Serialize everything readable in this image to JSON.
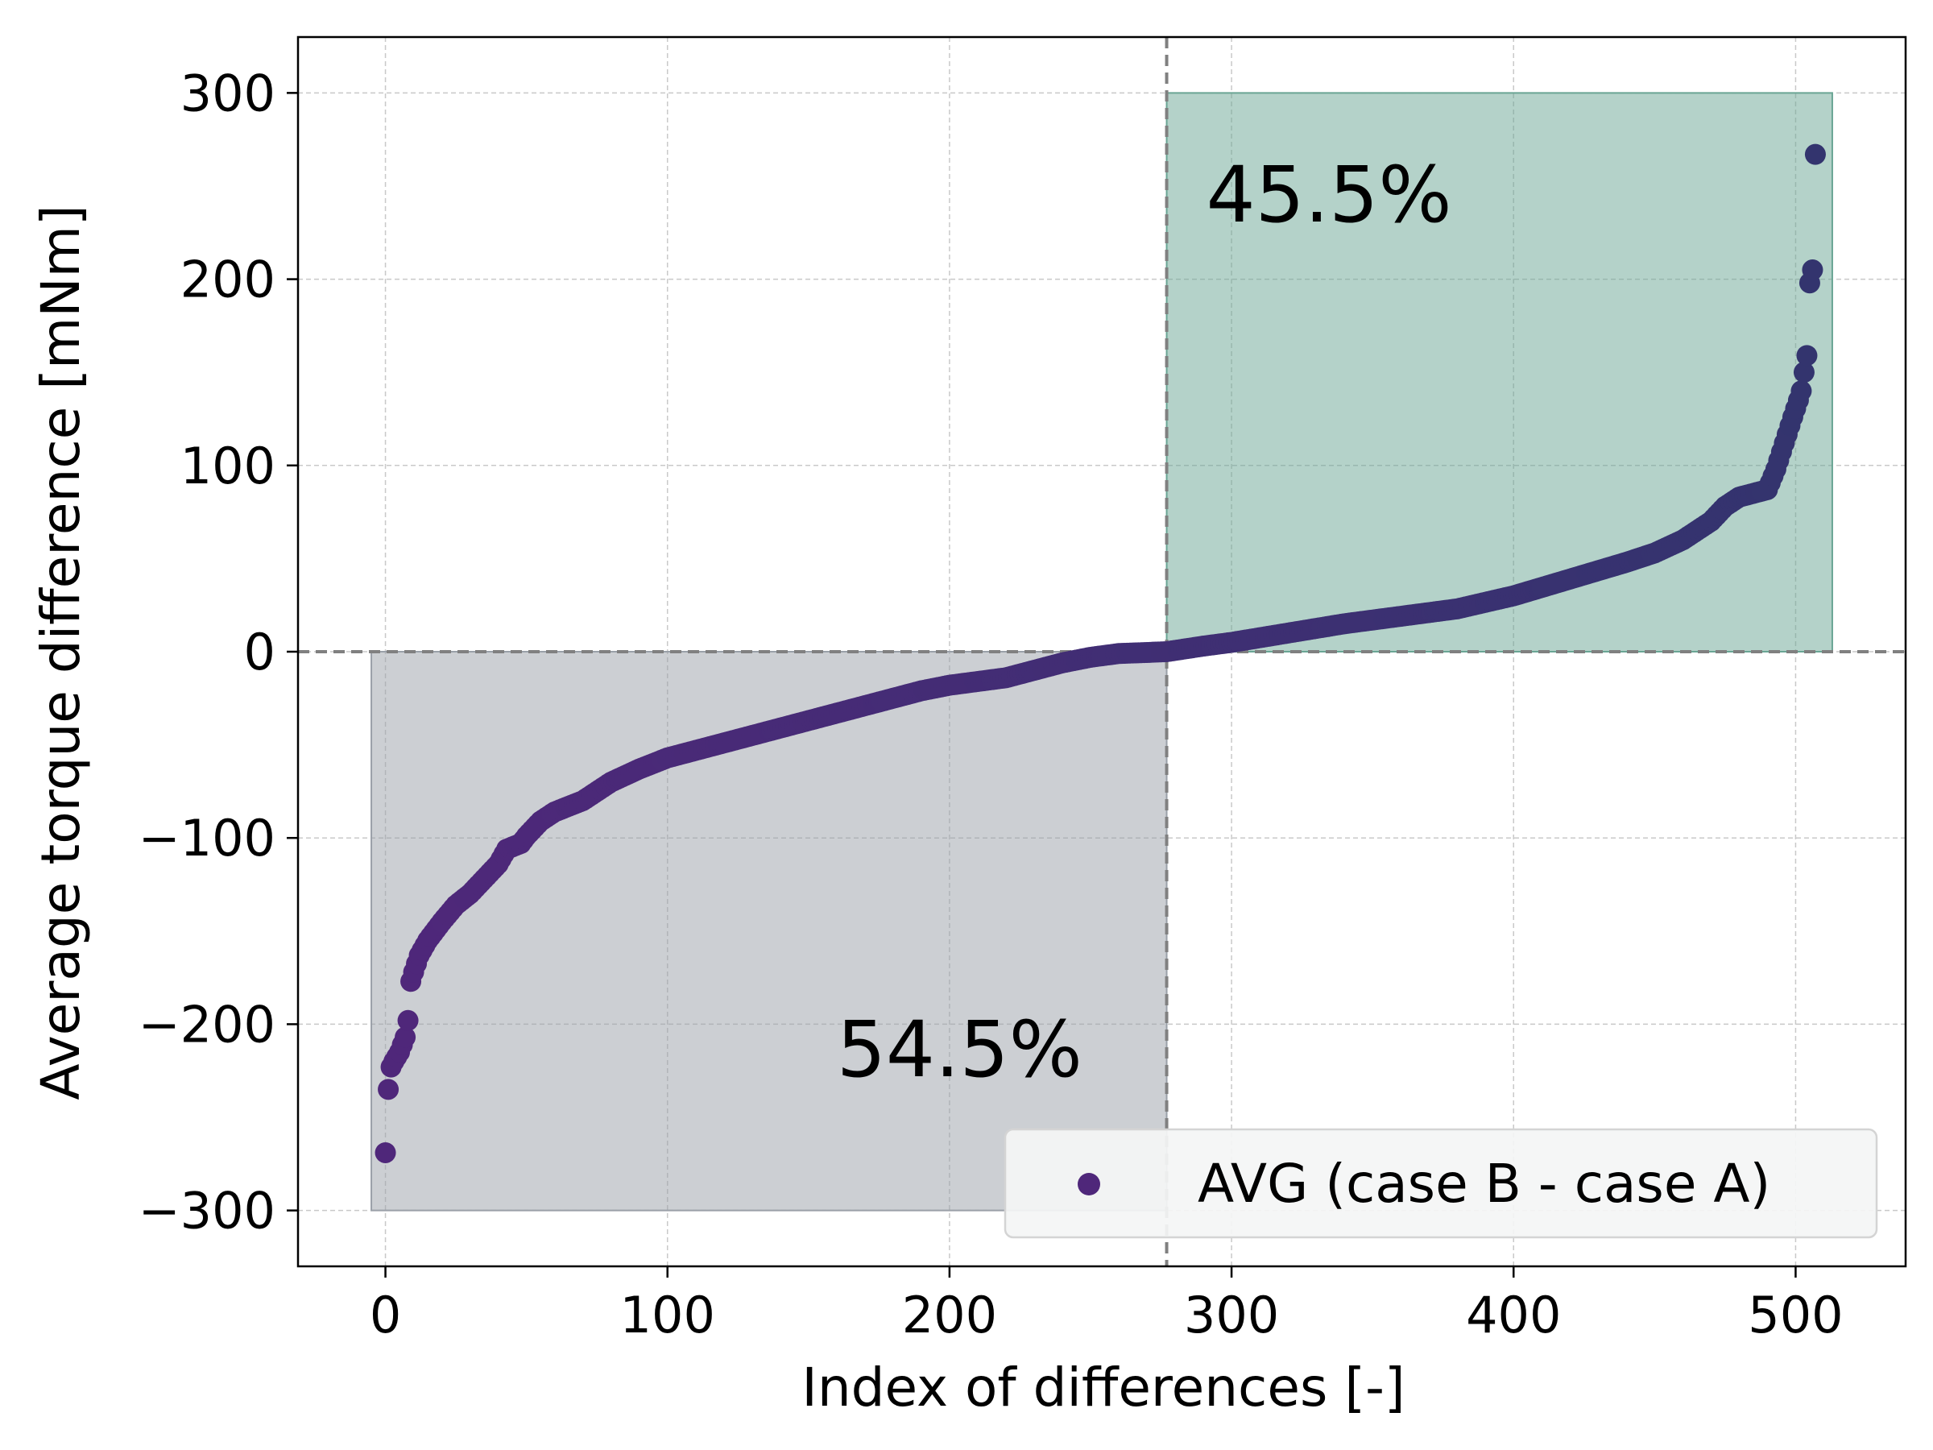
{
  "chart_data": {
    "type": "scatter",
    "title": "",
    "xlabel": "Index of differences [-]",
    "ylabel": "Average torque difference [mNm]",
    "xlim": [
      -31,
      539
    ],
    "ylim": [
      -330,
      330
    ],
    "xticks": [
      0,
      100,
      200,
      300,
      400,
      500
    ],
    "yticks": [
      -300,
      -200,
      -100,
      0,
      100,
      200,
      300
    ],
    "xtick_labels": [
      "0",
      "100",
      "200",
      "300",
      "400",
      "500"
    ],
    "ytick_labels": [
      "−300",
      "−200",
      "−100",
      "0",
      "100",
      "200",
      "300"
    ],
    "grid": true,
    "legend": {
      "placement": "lower-right",
      "entries": [
        "AVG (case B - case A)"
      ]
    },
    "reference_lines": {
      "horizontal_y": 0,
      "vertical_x": 277
    },
    "regions": [
      {
        "name": "negative-region",
        "x": [
          -5,
          277
        ],
        "y": [
          -300,
          0
        ],
        "color": "#9aa0a8",
        "label": "54.5%"
      },
      {
        "name": "positive-region",
        "x": [
          277,
          513
        ],
        "y": [
          0,
          300
        ],
        "color": "#6aa594",
        "label": "45.5%"
      }
    ],
    "annotations": [
      {
        "text": "54.5%",
        "x": 160,
        "y": -228
      },
      {
        "text": "45.5%",
        "x": 291,
        "y": 231
      }
    ],
    "series": [
      {
        "name": "AVG (case B - case A)",
        "color_start": "#4f277a",
        "color_end": "#33346e",
        "n_points": 508,
        "profile": [
          [
            0,
            -269
          ],
          [
            1,
            -235
          ],
          [
            2,
            -223
          ],
          [
            3,
            -220
          ],
          [
            5,
            -215
          ],
          [
            7,
            -207
          ],
          [
            8,
            -198
          ],
          [
            9,
            -177
          ],
          [
            10,
            -172
          ],
          [
            12,
            -163
          ],
          [
            15,
            -155
          ],
          [
            20,
            -145
          ],
          [
            25,
            -136
          ],
          [
            30,
            -130
          ],
          [
            35,
            -122
          ],
          [
            40,
            -114
          ],
          [
            43,
            -106
          ],
          [
            48,
            -103
          ],
          [
            50,
            -99
          ],
          [
            55,
            -91
          ],
          [
            60,
            -86
          ],
          [
            65,
            -83
          ],
          [
            70,
            -80
          ],
          [
            75,
            -75
          ],
          [
            80,
            -70
          ],
          [
            90,
            -63
          ],
          [
            100,
            -57
          ],
          [
            110,
            -53
          ],
          [
            120,
            -49
          ],
          [
            130,
            -45
          ],
          [
            140,
            -41
          ],
          [
            150,
            -37
          ],
          [
            160,
            -33
          ],
          [
            170,
            -29
          ],
          [
            180,
            -25
          ],
          [
            190,
            -21
          ],
          [
            200,
            -18
          ],
          [
            210,
            -16
          ],
          [
            220,
            -14
          ],
          [
            230,
            -10
          ],
          [
            240,
            -6
          ],
          [
            250,
            -3
          ],
          [
            260,
            -1
          ],
          [
            277,
            0
          ],
          [
            290,
            3
          ],
          [
            300,
            5
          ],
          [
            320,
            10
          ],
          [
            340,
            15
          ],
          [
            360,
            19
          ],
          [
            380,
            23
          ],
          [
            400,
            30
          ],
          [
            420,
            39
          ],
          [
            440,
            48
          ],
          [
            450,
            53
          ],
          [
            460,
            60
          ],
          [
            470,
            70
          ],
          [
            475,
            78
          ],
          [
            480,
            83
          ],
          [
            485,
            85
          ],
          [
            490,
            87
          ],
          [
            493,
            98
          ],
          [
            496,
            112
          ],
          [
            499,
            126
          ],
          [
            501,
            135
          ],
          [
            502,
            140
          ],
          [
            503,
            150
          ],
          [
            504,
            159
          ],
          [
            505,
            198
          ],
          [
            506,
            205
          ],
          [
            507,
            267
          ]
        ]
      }
    ]
  }
}
